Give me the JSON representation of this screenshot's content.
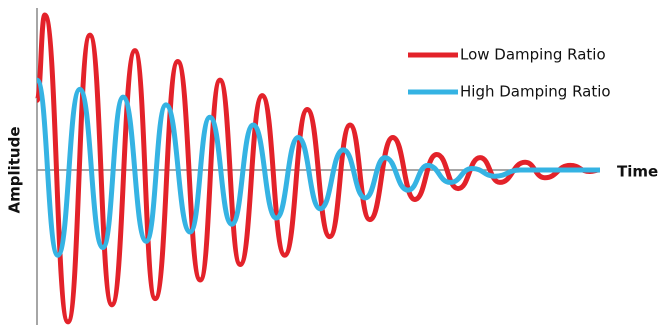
{
  "chart_data": {
    "type": "line",
    "x_label": "Time",
    "y_label": "Amplitude",
    "xlim": [
      0,
      100
    ],
    "ylim": [
      -1,
      1
    ],
    "legend": "upper right",
    "series": [
      {
        "name": "Low Damping Ratio",
        "color": "#e3222a",
        "x": [
          0,
          1.4,
          5.5,
          9.4,
          13.3,
          17.4,
          21.0,
          25.0,
          29.0,
          32.5,
          36.1,
          40.0,
          44.0,
          48.0,
          52.0,
          55.6,
          59.1,
          63.2,
          67.1,
          71.0,
          74.8,
          78.7,
          82.2,
          86.7,
          90.2,
          94.7,
          98.2,
          100
        ],
        "values": [
          0.45,
          1.0,
          -0.98,
          0.87,
          -0.87,
          0.77,
          -0.83,
          0.7,
          -0.71,
          0.58,
          -0.61,
          0.48,
          -0.55,
          0.39,
          -0.43,
          0.29,
          -0.32,
          0.21,
          -0.19,
          0.1,
          -0.12,
          0.08,
          -0.08,
          0.05,
          -0.05,
          0.03,
          -0.01,
          0
        ]
      },
      {
        "name": "High Damping Ratio",
        "color": "#35b3e3",
        "x": [
          0,
          3.7,
          7.6,
          11.7,
          15.3,
          19.4,
          22.9,
          27.2,
          30.7,
          34.6,
          38.4,
          42.5,
          46.4,
          50.3,
          54.4,
          58.3,
          61.8,
          65.9,
          69.4,
          73.4,
          77.3,
          81.3,
          85.8,
          100
        ],
        "values": [
          0.58,
          -0.55,
          0.52,
          -0.5,
          0.47,
          -0.46,
          0.42,
          -0.4,
          0.34,
          -0.35,
          0.29,
          -0.31,
          0.21,
          -0.25,
          0.13,
          -0.18,
          0.08,
          -0.13,
          0.03,
          -0.08,
          0.01,
          -0.04,
          0,
          0
        ]
      }
    ]
  }
}
